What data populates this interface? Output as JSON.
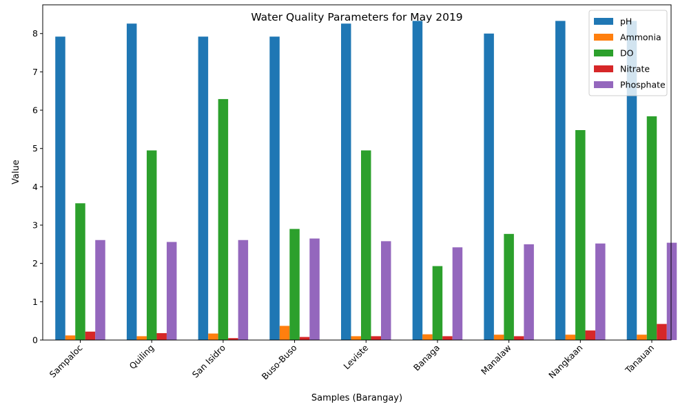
{
  "chart_data": {
    "type": "bar",
    "title": "Water Quality Parameters for May 2019",
    "xlabel": "Samples (Barangay)",
    "ylabel": "Value",
    "ylim": [
      0,
      8.75
    ],
    "yticks": [
      "0",
      "1",
      "2",
      "3",
      "4",
      "5",
      "6",
      "7",
      "8"
    ],
    "grid": false,
    "legend_position": "top-right",
    "categories": [
      "Sampaloc",
      "Quiling",
      "San Isidro",
      "Buso-Buso",
      "Leviste",
      "Banaga",
      "Manalaw",
      "Nangkaan",
      "Tanauan"
    ],
    "series": [
      {
        "name": "pH",
        "color": "#1f77b4",
        "values": [
          7.92,
          8.26,
          7.92,
          7.92,
          8.26,
          8.33,
          8.0,
          8.33,
          8.33
        ]
      },
      {
        "name": "Ammonia",
        "color": "#ff7f0e",
        "values": [
          0.12,
          0.1,
          0.17,
          0.37,
          0.1,
          0.15,
          0.14,
          0.14,
          0.14
        ]
      },
      {
        "name": "DO",
        "color": "#2ca02c",
        "values": [
          3.57,
          4.95,
          6.29,
          2.9,
          4.95,
          1.93,
          2.77,
          5.48,
          5.84
        ]
      },
      {
        "name": "Nitrate",
        "color": "#d62728",
        "values": [
          0.22,
          0.18,
          0.05,
          0.08,
          0.1,
          0.1,
          0.1,
          0.25,
          0.42
        ]
      },
      {
        "name": "Phosphate",
        "color": "#9467bd",
        "values": [
          2.61,
          2.56,
          2.61,
          2.65,
          2.58,
          2.42,
          2.5,
          2.52,
          2.54
        ]
      }
    ]
  }
}
